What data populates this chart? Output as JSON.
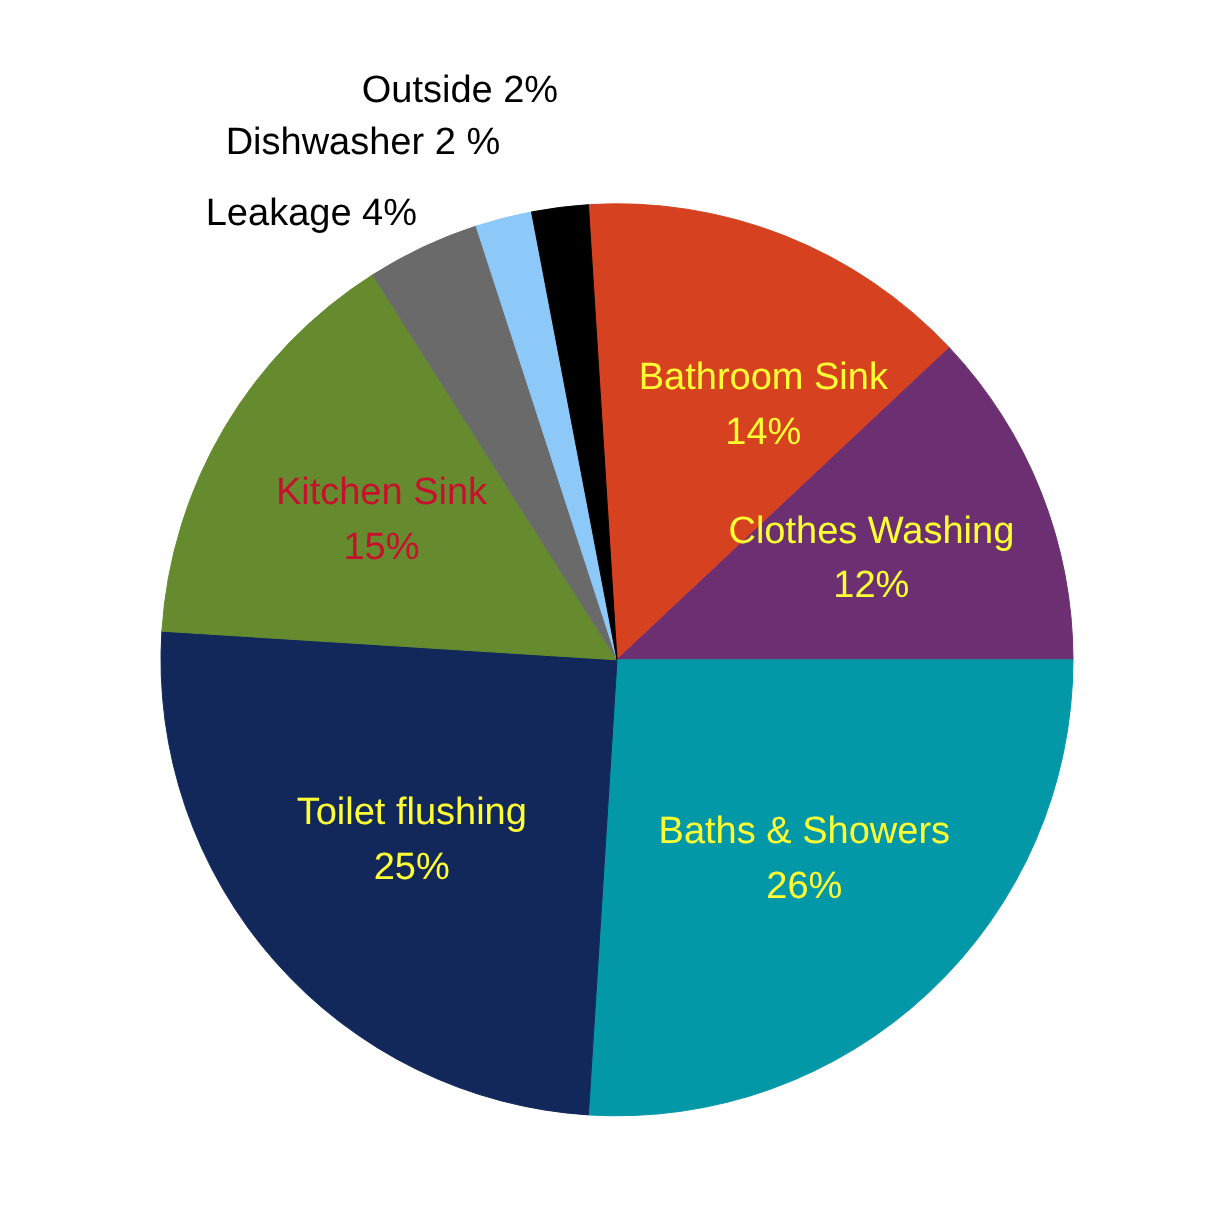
{
  "chart_data": {
    "type": "pie",
    "categories": [
      "Bathroom Sink",
      "Clothes Washing",
      "Baths & Showers",
      "Toilet flushing",
      "Kitchen Sink",
      "Leakage",
      "Dishwasher",
      "Outside"
    ],
    "values": [
      14,
      12,
      26,
      25,
      15,
      4,
      2,
      2
    ],
    "value_labels": [
      "14%",
      "12%",
      "26%",
      "25%",
      "15%",
      "4%",
      "2 %",
      "2%"
    ],
    "colors": [
      "#d6411f",
      "#6b2f72",
      "#0298a8",
      "#12285a",
      "#658b2e",
      "#6a6a6a",
      "#8cc8f8",
      "#000000"
    ]
  }
}
